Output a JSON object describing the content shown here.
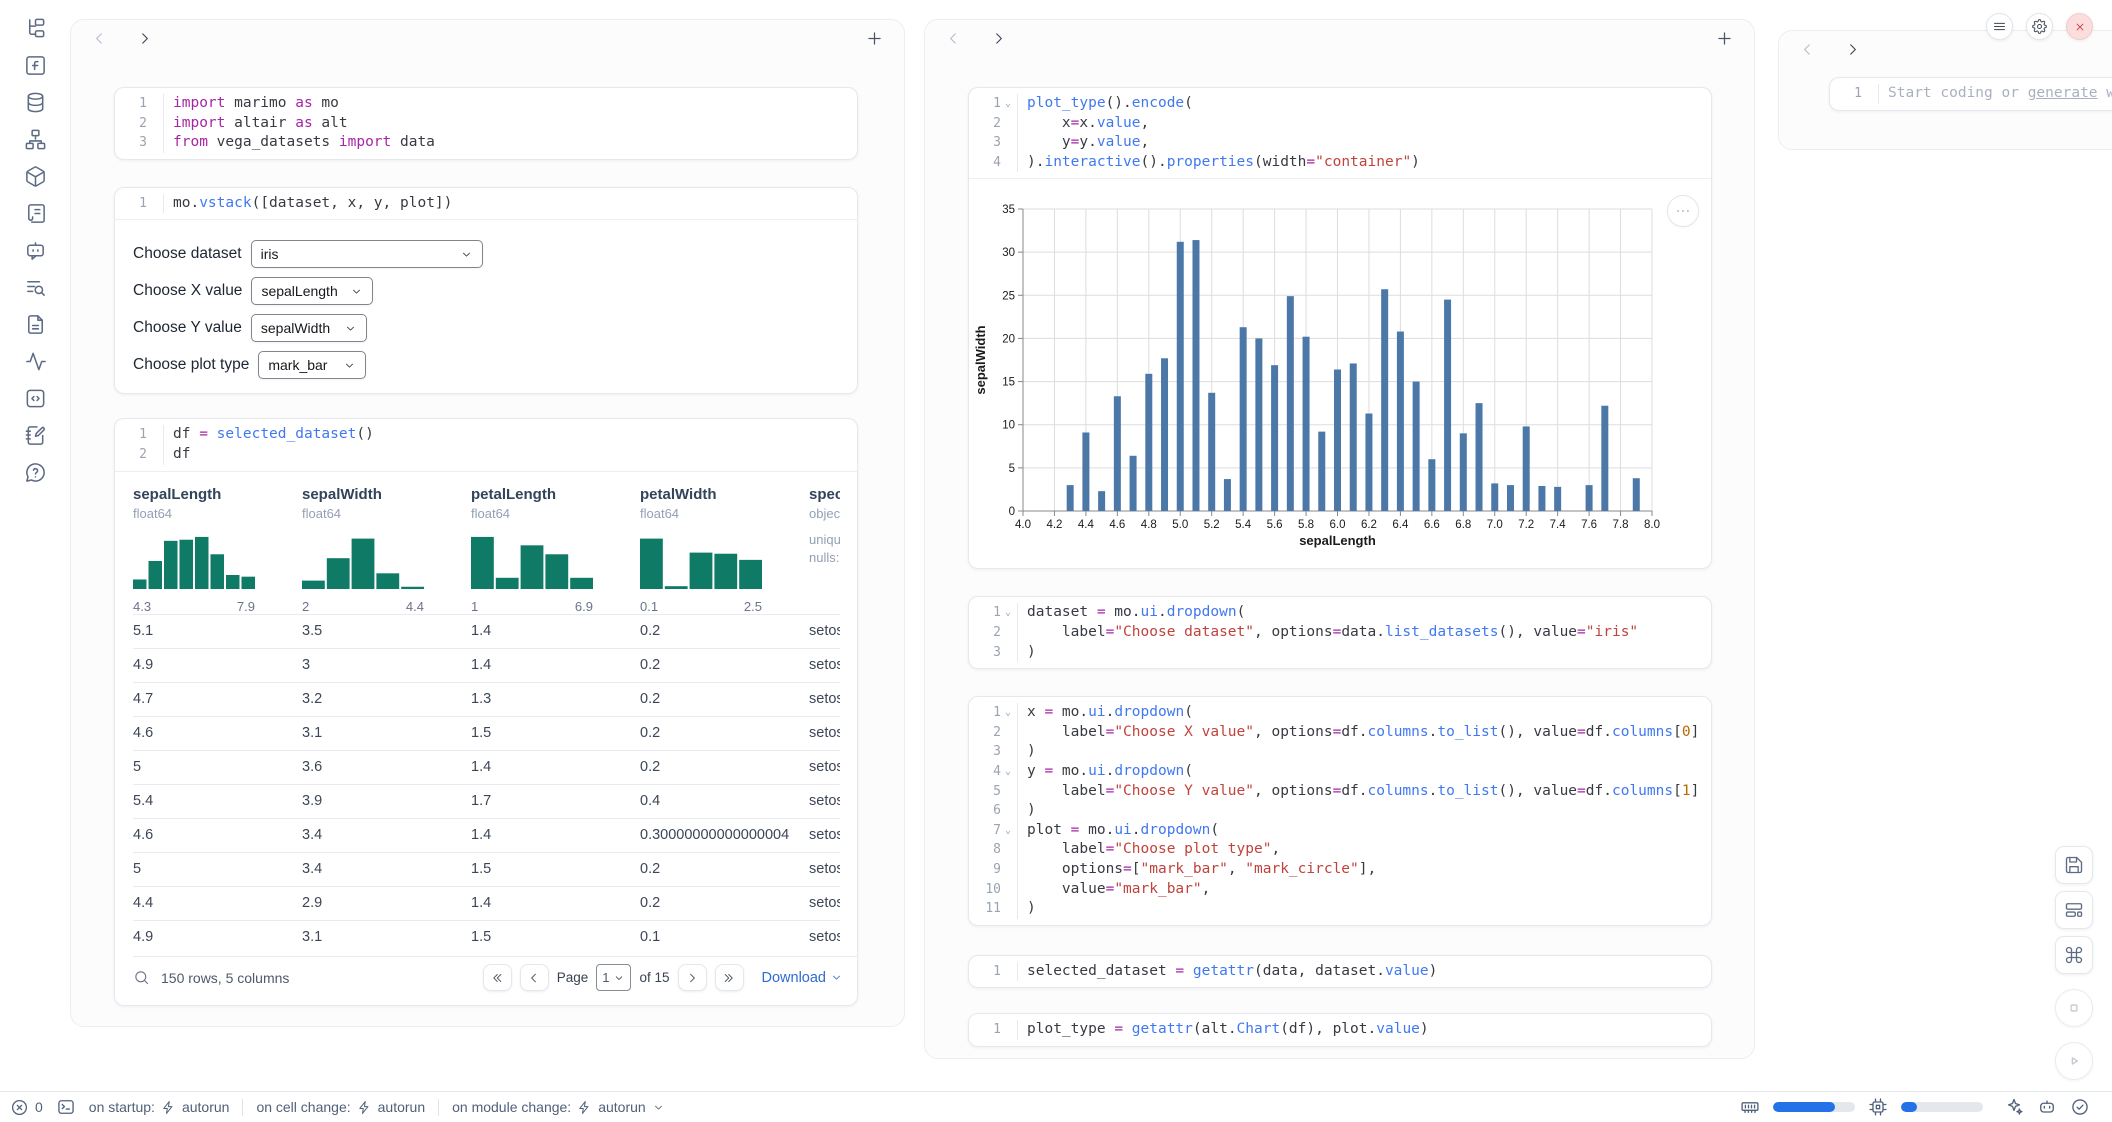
{
  "sidebar": {
    "icons": [
      "file-tree",
      "function-square",
      "database",
      "hierarchy",
      "package",
      "scroll",
      "bot-chat",
      "list-search",
      "document",
      "activity",
      "code-box",
      "notebook-edit",
      "help"
    ]
  },
  "window_controls": {
    "buttons": [
      "menu",
      "gear",
      "close"
    ]
  },
  "right_toolbar": {
    "buttons": [
      "save",
      "layout",
      "command",
      "stop",
      "play"
    ]
  },
  "cells": {
    "imports": {
      "lines": [
        {
          "t": [
            [
              "k",
              "import"
            ],
            [
              "p",
              " marimo "
            ],
            [
              "k",
              "as"
            ],
            [
              "p",
              " mo"
            ]
          ]
        },
        {
          "t": [
            [
              "k",
              "import"
            ],
            [
              "p",
              " altair "
            ],
            [
              "k",
              "as"
            ],
            [
              "p",
              " alt"
            ]
          ]
        },
        {
          "t": [
            [
              "k",
              "from"
            ],
            [
              "p",
              " vega_datasets "
            ],
            [
              "k",
              "import"
            ],
            [
              "p",
              " data"
            ]
          ]
        }
      ]
    },
    "vstack": {
      "lines": [
        {
          "t": [
            [
              "p",
              "mo"
            ],
            [
              "d",
              "."
            ],
            [
              "f",
              "vstack"
            ],
            [
              "p",
              "([dataset, x, y, plot])"
            ]
          ]
        }
      ]
    },
    "df": {
      "lines": [
        {
          "t": [
            [
              "p",
              "df "
            ],
            [
              "o",
              "="
            ],
            [
              "p",
              " "
            ],
            [
              "f",
              "selected_dataset"
            ],
            [
              "p",
              "()"
            ]
          ]
        },
        {
          "t": [
            [
              "p",
              "df"
            ]
          ]
        }
      ]
    },
    "plot_cell": {
      "lines": [
        {
          "fold": true,
          "t": [
            [
              "f",
              "plot_type"
            ],
            [
              "p",
              "()"
            ],
            [
              "d",
              "."
            ],
            [
              "f",
              "encode"
            ],
            [
              "p",
              "("
            ]
          ]
        },
        {
          "t": [
            [
              "p",
              "    x"
            ],
            [
              "o",
              "="
            ],
            [
              "p",
              "x"
            ],
            [
              "d",
              "."
            ],
            [
              "f",
              "value"
            ],
            [
              "p",
              ","
            ]
          ]
        },
        {
          "t": [
            [
              "p",
              "    y"
            ],
            [
              "o",
              "="
            ],
            [
              "p",
              "y"
            ],
            [
              "d",
              "."
            ],
            [
              "f",
              "value"
            ],
            [
              "p",
              ","
            ]
          ]
        },
        {
          "t": [
            [
              "p",
              ")"
            ],
            [
              "d",
              "."
            ],
            [
              "f",
              "interactive"
            ],
            [
              "p",
              "()"
            ],
            [
              "d",
              "."
            ],
            [
              "f",
              "properties"
            ],
            [
              "p",
              "(width"
            ],
            [
              "o",
              "="
            ],
            [
              "s",
              "\"container\""
            ],
            [
              "p",
              ")"
            ]
          ]
        }
      ]
    },
    "dataset_dd": {
      "lines": [
        {
          "fold": true,
          "t": [
            [
              "p",
              "dataset "
            ],
            [
              "o",
              "="
            ],
            [
              "p",
              " mo"
            ],
            [
              "d",
              "."
            ],
            [
              "f",
              "ui"
            ],
            [
              "d",
              "."
            ],
            [
              "f",
              "dropdown"
            ],
            [
              "p",
              "("
            ]
          ]
        },
        {
          "t": [
            [
              "p",
              "    label"
            ],
            [
              "o",
              "="
            ],
            [
              "s",
              "\"Choose dataset\""
            ],
            [
              "p",
              ", options"
            ],
            [
              "o",
              "="
            ],
            [
              "p",
              "data"
            ],
            [
              "d",
              "."
            ],
            [
              "f",
              "list_datasets"
            ],
            [
              "p",
              "(), value"
            ],
            [
              "o",
              "="
            ],
            [
              "s",
              "\"iris\""
            ]
          ]
        },
        {
          "t": [
            [
              "p",
              ")"
            ]
          ]
        }
      ]
    },
    "xyplot_dd": {
      "lines": [
        {
          "fold": true,
          "t": [
            [
              "p",
              "x "
            ],
            [
              "o",
              "="
            ],
            [
              "p",
              " mo"
            ],
            [
              "d",
              "."
            ],
            [
              "f",
              "ui"
            ],
            [
              "d",
              "."
            ],
            [
              "f",
              "dropdown"
            ],
            [
              "p",
              "("
            ]
          ]
        },
        {
          "t": [
            [
              "p",
              "    label"
            ],
            [
              "o",
              "="
            ],
            [
              "s",
              "\"Choose X value\""
            ],
            [
              "p",
              ", options"
            ],
            [
              "o",
              "="
            ],
            [
              "p",
              "df"
            ],
            [
              "d",
              "."
            ],
            [
              "f",
              "columns"
            ],
            [
              "d",
              "."
            ],
            [
              "f",
              "to_list"
            ],
            [
              "p",
              "(), value"
            ],
            [
              "o",
              "="
            ],
            [
              "p",
              "df"
            ],
            [
              "d",
              "."
            ],
            [
              "f",
              "columns"
            ],
            [
              "p",
              "["
            ],
            [
              "n",
              "0"
            ],
            [
              "p",
              "]"
            ]
          ]
        },
        {
          "t": [
            [
              "p",
              ")"
            ]
          ]
        },
        {
          "fold": true,
          "t": [
            [
              "p",
              "y "
            ],
            [
              "o",
              "="
            ],
            [
              "p",
              " mo"
            ],
            [
              "d",
              "."
            ],
            [
              "f",
              "ui"
            ],
            [
              "d",
              "."
            ],
            [
              "f",
              "dropdown"
            ],
            [
              "p",
              "("
            ]
          ]
        },
        {
          "t": [
            [
              "p",
              "    label"
            ],
            [
              "o",
              "="
            ],
            [
              "s",
              "\"Choose Y value\""
            ],
            [
              "p",
              ", options"
            ],
            [
              "o",
              "="
            ],
            [
              "p",
              "df"
            ],
            [
              "d",
              "."
            ],
            [
              "f",
              "columns"
            ],
            [
              "d",
              "."
            ],
            [
              "f",
              "to_list"
            ],
            [
              "p",
              "(), value"
            ],
            [
              "o",
              "="
            ],
            [
              "p",
              "df"
            ],
            [
              "d",
              "."
            ],
            [
              "f",
              "columns"
            ],
            [
              "p",
              "["
            ],
            [
              "n",
              "1"
            ],
            [
              "p",
              "]"
            ]
          ]
        },
        {
          "t": [
            [
              "p",
              ")"
            ]
          ]
        },
        {
          "fold": true,
          "t": [
            [
              "p",
              "plot "
            ],
            [
              "o",
              "="
            ],
            [
              "p",
              " mo"
            ],
            [
              "d",
              "."
            ],
            [
              "f",
              "ui"
            ],
            [
              "d",
              "."
            ],
            [
              "f",
              "dropdown"
            ],
            [
              "p",
              "("
            ]
          ]
        },
        {
          "t": [
            [
              "p",
              "    label"
            ],
            [
              "o",
              "="
            ],
            [
              "s",
              "\"Choose plot type\""
            ],
            [
              "p",
              ","
            ]
          ]
        },
        {
          "t": [
            [
              "p",
              "    options"
            ],
            [
              "o",
              "="
            ],
            [
              "p",
              "["
            ],
            [
              "s",
              "\"mark_bar\""
            ],
            [
              "p",
              ", "
            ],
            [
              "s",
              "\"mark_circle\""
            ],
            [
              "p",
              "],"
            ]
          ]
        },
        {
          "t": [
            [
              "p",
              "    value"
            ],
            [
              "o",
              "="
            ],
            [
              "s",
              "\"mark_bar\""
            ],
            [
              "p",
              ","
            ]
          ]
        },
        {
          "t": [
            [
              "p",
              ")"
            ]
          ]
        }
      ]
    },
    "selected": {
      "lines": [
        {
          "t": [
            [
              "p",
              "selected_dataset "
            ],
            [
              "o",
              "="
            ],
            [
              "p",
              " "
            ],
            [
              "f",
              "getattr"
            ],
            [
              "p",
              "(data, dataset"
            ],
            [
              "d",
              "."
            ],
            [
              "f",
              "value"
            ],
            [
              "p",
              ")"
            ]
          ]
        }
      ]
    },
    "plot_type": {
      "lines": [
        {
          "t": [
            [
              "p",
              "plot_type "
            ],
            [
              "o",
              "="
            ],
            [
              "p",
              " "
            ],
            [
              "f",
              "getattr"
            ],
            [
              "p",
              "(alt"
            ],
            [
              "d",
              "."
            ],
            [
              "f",
              "Chart"
            ],
            [
              "p",
              "(df), plot"
            ],
            [
              "d",
              "."
            ],
            [
              "f",
              "value"
            ],
            [
              "p",
              ")"
            ]
          ]
        }
      ]
    }
  },
  "controls": {
    "dataset": {
      "label": "Choose dataset",
      "value": "iris"
    },
    "x": {
      "label": "Choose X value",
      "value": "sepalLength"
    },
    "y": {
      "label": "Choose Y value",
      "value": "sepalWidth"
    },
    "plot": {
      "label": "Choose plot type",
      "value": "mark_bar"
    }
  },
  "table": {
    "hist_color": "#0f7a65",
    "columns": [
      {
        "name": "sepalLength",
        "dtype": "float64",
        "hist": [
          17,
          50,
          86,
          88,
          93,
          62,
          25,
          22
        ],
        "range": [
          "4.3",
          "7.9"
        ]
      },
      {
        "name": "sepalWidth",
        "dtype": "float64",
        "hist": [
          15,
          55,
          90,
          28,
          4
        ],
        "range": [
          "2",
          "4.4"
        ]
      },
      {
        "name": "petalLength",
        "dtype": "float64",
        "hist": [
          93,
          20,
          78,
          62,
          20
        ],
        "range": [
          "1",
          "6.9"
        ]
      },
      {
        "name": "petalWidth",
        "dtype": "float64",
        "hist": [
          90,
          5,
          65,
          63,
          52
        ],
        "range": [
          "0.1",
          "2.5"
        ]
      },
      {
        "name": "species",
        "dtype": "object",
        "meta": [
          "unique:",
          "nulls:"
        ]
      }
    ],
    "rows": [
      [
        "5.1",
        "3.5",
        "1.4",
        "0.2",
        "setosa"
      ],
      [
        "4.9",
        "3",
        "1.4",
        "0.2",
        "setosa"
      ],
      [
        "4.7",
        "3.2",
        "1.3",
        "0.2",
        "setosa"
      ],
      [
        "4.6",
        "3.1",
        "1.5",
        "0.2",
        "setosa"
      ],
      [
        "5",
        "3.6",
        "1.4",
        "0.2",
        "setosa"
      ],
      [
        "5.4",
        "3.9",
        "1.7",
        "0.4",
        "setosa"
      ],
      [
        "4.6",
        "3.4",
        "1.4",
        "0.30000000000000004",
        "setosa"
      ],
      [
        "5",
        "3.4",
        "1.5",
        "0.2",
        "setosa"
      ],
      [
        "4.4",
        "2.9",
        "1.4",
        "0.2",
        "setosa"
      ],
      [
        "4.9",
        "3.1",
        "1.5",
        "0.1",
        "setosa"
      ]
    ],
    "footer": {
      "summary": "150 rows, 5 columns",
      "page_label": "Page",
      "page_value": "1",
      "of": "of 15",
      "download": "Download"
    }
  },
  "chart_data": {
    "type": "bar",
    "title": "",
    "xlabel": "sepalLength",
    "ylabel": "sepalWidth",
    "x": [
      4.3,
      4.4,
      4.5,
      4.6,
      4.7,
      4.8,
      4.9,
      5.0,
      5.1,
      5.2,
      5.3,
      5.4,
      5.5,
      5.6,
      5.7,
      5.8,
      5.9,
      6.0,
      6.1,
      6.2,
      6.3,
      6.4,
      6.5,
      6.6,
      6.7,
      6.8,
      6.9,
      7.0,
      7.1,
      7.2,
      7.3,
      7.4,
      7.6,
      7.7,
      7.9
    ],
    "y": [
      3.0,
      9.1,
      2.3,
      13.3,
      6.4,
      15.9,
      17.7,
      31.2,
      31.4,
      13.7,
      3.7,
      21.3,
      20.0,
      16.9,
      24.9,
      20.2,
      9.2,
      16.4,
      17.1,
      11.3,
      25.7,
      20.8,
      15.0,
      6.0,
      24.5,
      9.0,
      12.5,
      3.2,
      3.0,
      9.8,
      2.9,
      2.8,
      3.0,
      12.2,
      3.8
    ],
    "xlim": [
      4.0,
      8.0
    ],
    "ylim": [
      0,
      35
    ],
    "x_ticks": [
      "4.0",
      "4.2",
      "4.4",
      "4.6",
      "4.8",
      "5.0",
      "5.2",
      "5.4",
      "5.6",
      "5.8",
      "6.0",
      "6.2",
      "6.4",
      "6.6",
      "6.8",
      "7.0",
      "7.2",
      "7.4",
      "7.6",
      "7.8",
      "8.0"
    ],
    "y_ticks": [
      0,
      5,
      10,
      15,
      20,
      25,
      30,
      35
    ],
    "bar_color": "#4c78a8",
    "grid": true,
    "legend": "none"
  },
  "scratch": {
    "line_no": "1",
    "prefix": "Start coding or ",
    "link": "generate",
    "suffix": " with"
  },
  "status_bar": {
    "error_count": "0",
    "run_items": [
      {
        "label": "on startup:",
        "value": "autorun",
        "has_chevron": false
      },
      {
        "label": "on cell change:",
        "value": "autorun",
        "has_chevron": false
      },
      {
        "label": "on module change:",
        "value": "autorun",
        "has_chevron": true
      }
    ],
    "resources": {
      "ram_percent": 75,
      "cpu_percent": 20
    },
    "accent": "#2472e8"
  }
}
